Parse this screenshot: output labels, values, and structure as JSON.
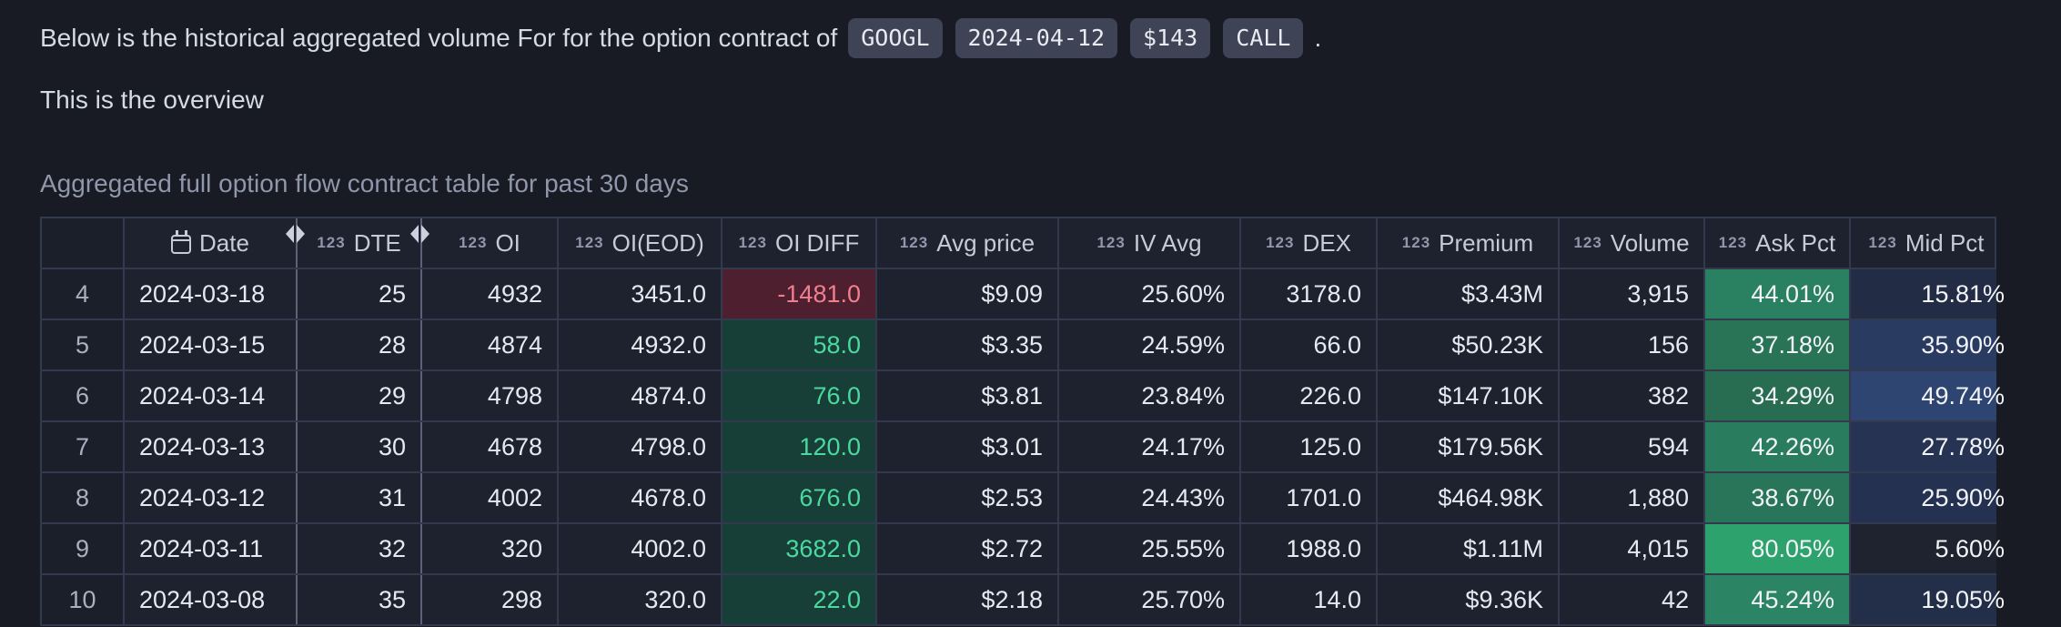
{
  "intro": {
    "text_before_badges": "Below is the historical aggregated volume For for the option contract of",
    "badges": [
      "GOOGL",
      "2024-04-12",
      "$143",
      "CALL"
    ],
    "text_after_badges": ".",
    "overview_line": "This is the overview"
  },
  "table_caption": "Aggregated full option flow contract table for past 30 days",
  "table": {
    "number_icon_text": "123",
    "columns": [
      {
        "key": "idx",
        "label": "",
        "icon": "none"
      },
      {
        "key": "date",
        "label": "Date",
        "icon": "calendar"
      },
      {
        "key": "dte",
        "label": "DTE",
        "icon": "number"
      },
      {
        "key": "oi",
        "label": "OI",
        "icon": "number"
      },
      {
        "key": "oi_eod",
        "label": "OI(EOD)",
        "icon": "number"
      },
      {
        "key": "oi_diff",
        "label": "OI DIFF",
        "icon": "number"
      },
      {
        "key": "avg_price",
        "label": "Avg price",
        "icon": "number"
      },
      {
        "key": "iv_avg",
        "label": "IV Avg",
        "icon": "number"
      },
      {
        "key": "dex",
        "label": "DEX",
        "icon": "number"
      },
      {
        "key": "premium",
        "label": "Premium",
        "icon": "number"
      },
      {
        "key": "volume",
        "label": "Volume",
        "icon": "number"
      },
      {
        "key": "ask_pct",
        "label": "Ask Pct",
        "icon": "number"
      },
      {
        "key": "mid_pct",
        "label": "Mid Pct",
        "icon": "number"
      }
    ],
    "rows": [
      {
        "idx": "4",
        "date": "2024-03-18",
        "dte": "25",
        "oi": "4932",
        "oi_eod": "3451.0",
        "oi_diff": "-1481.0",
        "avg_price": "$9.09",
        "iv_avg": "25.60%",
        "dex": "3178.0",
        "premium": "$3.43M",
        "volume": "3,915",
        "ask_pct": "44.01%",
        "ask_bg": "#2a8161",
        "mid_pct": "15.81%",
        "mid_bg": "#232c45"
      },
      {
        "idx": "5",
        "date": "2024-03-15",
        "dte": "28",
        "oi": "4874",
        "oi_eod": "4932.0",
        "oi_diff": "58.0",
        "avg_price": "$3.35",
        "iv_avg": "24.59%",
        "dex": "66.0",
        "premium": "$50.23K",
        "volume": "156",
        "ask_pct": "37.18%",
        "ask_bg": "#297357",
        "mid_pct": "35.90%",
        "mid_bg": "#2a3b61"
      },
      {
        "idx": "6",
        "date": "2024-03-14",
        "dte": "29",
        "oi": "4798",
        "oi_eod": "4874.0",
        "oi_diff": "76.0",
        "avg_price": "$3.81",
        "iv_avg": "23.84%",
        "dex": "226.0",
        "premium": "$147.10K",
        "volume": "382",
        "ask_pct": "34.29%",
        "ask_bg": "#286d52",
        "mid_pct": "49.74%",
        "mid_bg": "#2e4571"
      },
      {
        "idx": "7",
        "date": "2024-03-13",
        "dte": "30",
        "oi": "4678",
        "oi_eod": "4798.0",
        "oi_diff": "120.0",
        "avg_price": "$3.01",
        "iv_avg": "24.17%",
        "dex": "125.0",
        "premium": "$179.56K",
        "volume": "594",
        "ask_pct": "42.26%",
        "ask_bg": "#2a7c5e",
        "mid_pct": "27.78%",
        "mid_bg": "#263352"
      },
      {
        "idx": "8",
        "date": "2024-03-12",
        "dte": "31",
        "oi": "4002",
        "oi_eod": "4678.0",
        "oi_diff": "676.0",
        "avg_price": "$2.53",
        "iv_avg": "24.43%",
        "dex": "1701.0",
        "premium": "$464.98K",
        "volume": "1,880",
        "ask_pct": "38.67%",
        "ask_bg": "#29755a",
        "mid_pct": "25.90%",
        "mid_bg": "#253150"
      },
      {
        "idx": "9",
        "date": "2024-03-11",
        "dte": "32",
        "oi": "320",
        "oi_eod": "4002.0",
        "oi_diff": "3682.0",
        "avg_price": "$2.72",
        "iv_avg": "25.55%",
        "dex": "1988.0",
        "premium": "$1.11M",
        "volume": "4,015",
        "ask_pct": "80.05%",
        "ask_bg": "#2ea26d",
        "mid_pct": "5.60%",
        "mid_bg": "#1f232f"
      },
      {
        "idx": "10",
        "date": "2024-03-08",
        "dte": "35",
        "oi": "298",
        "oi_eod": "320.0",
        "oi_diff": "22.0",
        "avg_price": "$2.18",
        "iv_avg": "25.70%",
        "dex": "14.0",
        "premium": "$9.36K",
        "volume": "42",
        "ask_pct": "45.24%",
        "ask_bg": "#2b8463",
        "mid_pct": "19.05%",
        "mid_bg": "#232e49"
      }
    ]
  },
  "colors": {
    "page_bg": "#181b24",
    "badge_bg": "#3e4355",
    "negative_bg": "#4e1f2e",
    "negative_text": "#f17f90",
    "positive_bg": "#173f38",
    "positive_text": "#4bd9a0"
  }
}
